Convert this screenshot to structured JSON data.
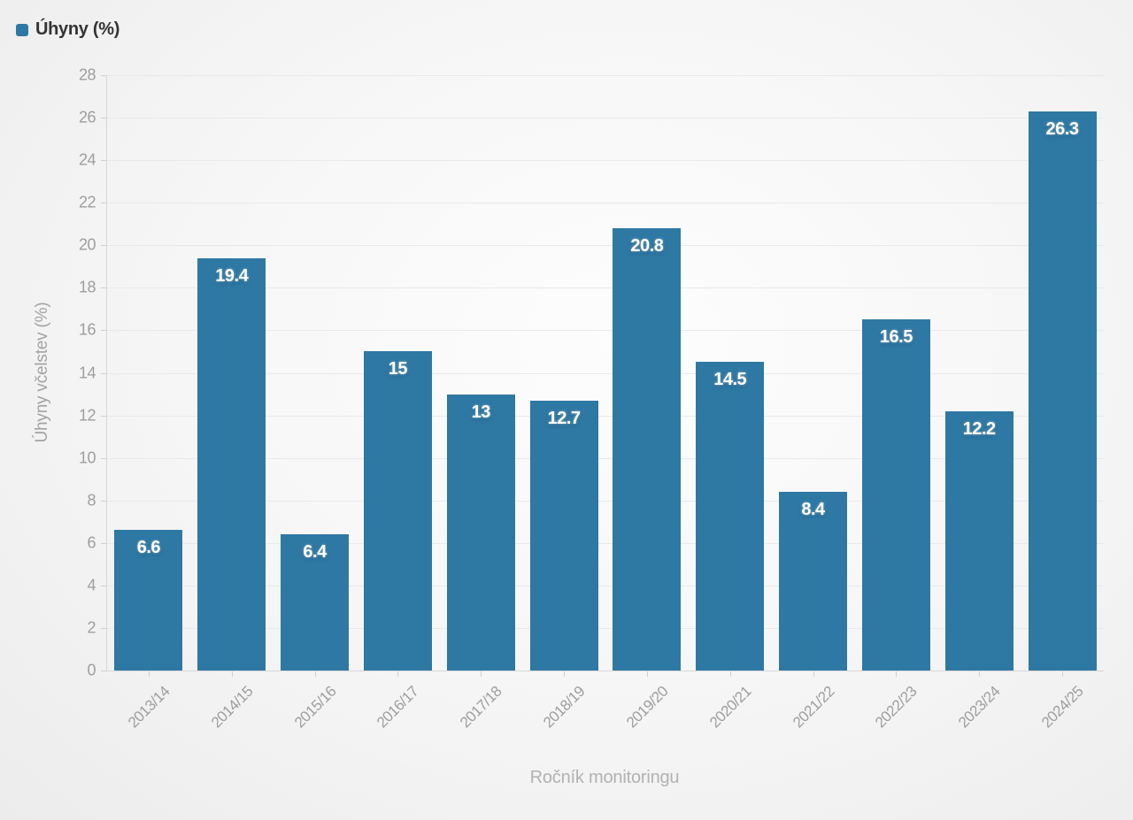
{
  "legend": {
    "label": "Úhyny (%)",
    "swatch_color": "#2e78a4"
  },
  "chart_data": {
    "type": "bar",
    "title": "",
    "categories": [
      "2013/14",
      "2014/15",
      "2015/16",
      "2016/17",
      "2017/18",
      "2018/19",
      "2019/20",
      "2020/21",
      "2021/22",
      "2022/23",
      "2023/24",
      "2024/25"
    ],
    "series": [
      {
        "name": "Úhyny (%)",
        "values": [
          6.6,
          19.4,
          6.4,
          15,
          13,
          12.7,
          20.8,
          14.5,
          8.4,
          16.5,
          12.2,
          26.3
        ],
        "value_labels": [
          "6.6",
          "19.4",
          "6.4",
          "15",
          "13",
          "12.7",
          "20.8",
          "14.5",
          "8.4",
          "16.5",
          "12.2",
          "26.3"
        ],
        "color": "#2e78a4"
      }
    ],
    "xlabel": "Ročník monitoringu",
    "ylabel": "Úhyny včelstev (%)",
    "ylim": [
      0,
      28
    ],
    "ytick_step": 2,
    "grid": true,
    "legend_position": "top-left",
    "x_label_rotation_deg": -45
  },
  "colors": {
    "bar": "#2e78a4",
    "grid_line": "#e9e9e9",
    "axis_line": "#d7d7d7",
    "tick_label": "#9e9e9e",
    "axis_title": "#a3a3a3",
    "legend_text": "#333333",
    "background_light": "#fdfdfd",
    "background_dark": "#ececec"
  }
}
